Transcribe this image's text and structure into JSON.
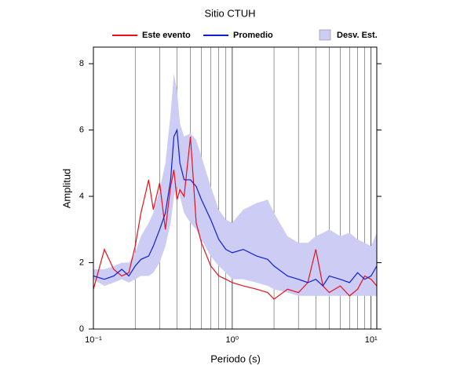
{
  "chart_data": {
    "type": "line",
    "title": "Sitio CTUH",
    "x_label": "Periodo (s)",
    "y_label": "Amplitud",
    "log_x": true,
    "grid": "x",
    "xlim": [
      0.1,
      11
    ],
    "ylim": [
      0,
      8.5
    ],
    "xticks": [
      {
        "value": 0.1,
        "label": "10⁻¹"
      },
      {
        "value": 1,
        "label": "10⁰"
      },
      {
        "value": 10,
        "label": "10¹"
      }
    ],
    "yticks": [
      0,
      2,
      4,
      6,
      8
    ],
    "x": [
      0.1,
      0.12,
      0.14,
      0.16,
      0.18,
      0.2,
      0.22,
      0.25,
      0.27,
      0.3,
      0.33,
      0.36,
      0.38,
      0.4,
      0.42,
      0.45,
      0.5,
      0.55,
      0.6,
      0.7,
      0.8,
      0.9,
      1,
      1.2,
      1.5,
      1.8,
      2,
      2.5,
      3,
      3.5,
      4,
      4.5,
      5,
      6,
      7,
      8,
      9,
      10,
      11
    ],
    "series": [
      {
        "name": "Este evento",
        "color": "#e8101a",
        "values": [
          1.2,
          2.4,
          1.8,
          1.6,
          1.7,
          2.5,
          3.5,
          4.5,
          3.6,
          4.4,
          3.0,
          4.3,
          4.8,
          3.9,
          4.2,
          4.0,
          5.8,
          3.2,
          2.6,
          1.9,
          1.6,
          1.5,
          1.4,
          1.3,
          1.2,
          1.1,
          0.9,
          1.2,
          1.1,
          1.4,
          2.4,
          1.3,
          1.1,
          1.3,
          1.0,
          1.2,
          1.6,
          1.5,
          1.3
        ]
      },
      {
        "name": "Promedio",
        "color": "#1020d0",
        "values": [
          1.6,
          1.5,
          1.6,
          1.8,
          1.6,
          1.9,
          2.1,
          2.2,
          2.5,
          3.0,
          3.5,
          4.5,
          5.8,
          6.0,
          5.0,
          4.5,
          4.5,
          4.3,
          3.9,
          3.3,
          2.7,
          2.4,
          2.3,
          2.4,
          2.2,
          2.1,
          1.9,
          1.6,
          1.5,
          1.4,
          1.5,
          1.3,
          1.6,
          1.5,
          1.4,
          1.7,
          1.5,
          1.6,
          1.9
        ]
      },
      {
        "name": "Desv. Est.",
        "color": "#ccccf5",
        "upper": [
          1.8,
          1.8,
          1.9,
          2.0,
          2.0,
          2.3,
          2.8,
          3.2,
          3.5,
          4.2,
          5.0,
          6.5,
          7.7,
          7.2,
          6.2,
          5.8,
          5.9,
          5.7,
          5.2,
          4.3,
          3.6,
          3.3,
          3.2,
          3.6,
          3.8,
          3.9,
          3.5,
          2.8,
          2.6,
          2.6,
          2.8,
          2.9,
          3.0,
          2.8,
          2.9,
          2.7,
          2.6,
          2.5,
          2.9
        ],
        "lower": [
          1.5,
          1.3,
          1.4,
          1.5,
          1.4,
          1.5,
          1.6,
          1.6,
          1.7,
          2.0,
          2.5,
          3.2,
          4.0,
          4.3,
          4.0,
          3.5,
          3.2,
          3.0,
          2.7,
          2.2,
          1.9,
          1.7,
          1.5,
          1.5,
          1.4,
          1.3,
          1.2,
          1.1,
          1.0,
          1.0,
          1.0,
          1.0,
          1.0,
          1.0,
          1.0,
          1.0,
          1.0,
          1.0,
          1.0
        ]
      }
    ]
  }
}
